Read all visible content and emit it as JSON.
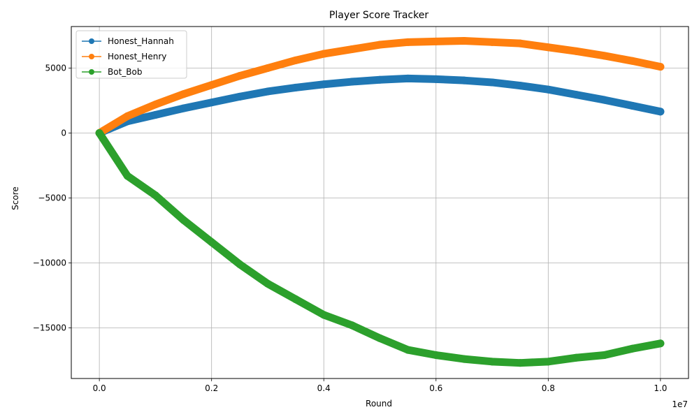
{
  "chart_data": {
    "type": "line",
    "title": "Player Score Tracker",
    "xlabel": "Round",
    "ylabel": "Score",
    "x_offset_text": "1e7",
    "xlim": [
      -500000,
      10500000
    ],
    "ylim": [
      -18900,
      8200
    ],
    "x_ticks": [
      0,
      2000000,
      4000000,
      6000000,
      8000000,
      10000000
    ],
    "x_tick_labels": [
      "0.0",
      "0.2",
      "0.4",
      "0.6",
      "0.8",
      "1.0"
    ],
    "y_ticks": [
      5000,
      0,
      -5000,
      -10000,
      -15000
    ],
    "y_tick_labels": [
      "5000",
      "0",
      "−5000",
      "−10000",
      "−15000"
    ],
    "grid": true,
    "legend_position": "top-left",
    "series": [
      {
        "name": "Honest_Hannah",
        "color": "#1f77b4",
        "x": [
          0,
          500000,
          1000000,
          1500000,
          2000000,
          2500000,
          3000000,
          3500000,
          4000000,
          4500000,
          5000000,
          5500000,
          6000000,
          6500000,
          7000000,
          7500000,
          8000000,
          8500000,
          9000000,
          9500000,
          10000000
        ],
        "values": [
          0,
          900,
          1400,
          1900,
          2350,
          2800,
          3200,
          3500,
          3750,
          3950,
          4100,
          4200,
          4150,
          4050,
          3900,
          3650,
          3350,
          2950,
          2550,
          2100,
          1650
        ]
      },
      {
        "name": "Honest_Henry",
        "color": "#ff7f0e",
        "x": [
          0,
          500000,
          1000000,
          1500000,
          2000000,
          2500000,
          3000000,
          3500000,
          4000000,
          4500000,
          5000000,
          5500000,
          6000000,
          6500000,
          7000000,
          7500000,
          8000000,
          8500000,
          9000000,
          9500000,
          10000000
        ],
        "values": [
          0,
          1300,
          2200,
          3000,
          3700,
          4400,
          5000,
          5600,
          6100,
          6450,
          6800,
          7000,
          7050,
          7100,
          7000,
          6900,
          6600,
          6300,
          5950,
          5550,
          5100
        ]
      },
      {
        "name": "Bot_Bob",
        "color": "#2ca02c",
        "x": [
          0,
          500000,
          1000000,
          1500000,
          2000000,
          2500000,
          3000000,
          3500000,
          4000000,
          4500000,
          5000000,
          5500000,
          6000000,
          6500000,
          7000000,
          7500000,
          8000000,
          8500000,
          9000000,
          9500000,
          10000000
        ],
        "values": [
          0,
          -3300,
          -4800,
          -6700,
          -8400,
          -10100,
          -11600,
          -12800,
          -14000,
          -14800,
          -15800,
          -16700,
          -17100,
          -17400,
          -17600,
          -17700,
          -17600,
          -17300,
          -17100,
          -16600,
          -16200
        ]
      }
    ]
  }
}
